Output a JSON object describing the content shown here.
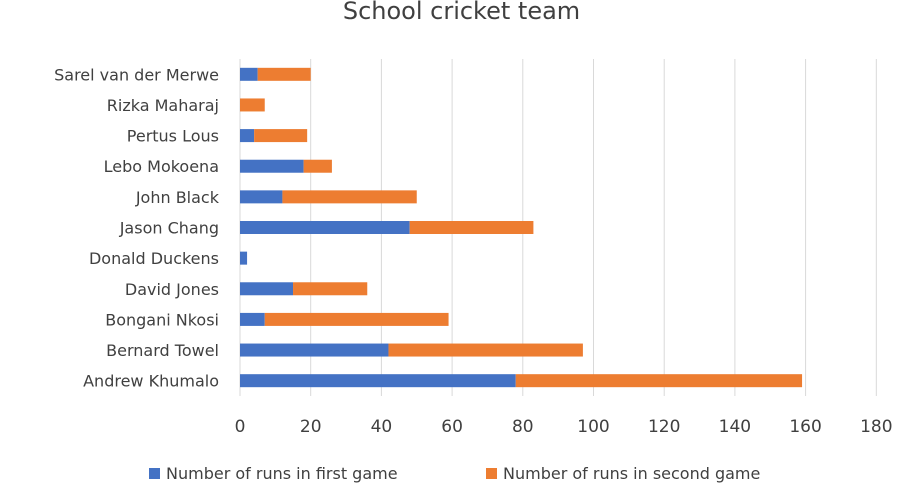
{
  "chart_data": {
    "type": "bar",
    "orientation": "horizontal",
    "stacked": true,
    "title": "School cricket team",
    "categories": [
      "Sarel van der Merwe",
      "Rizka Maharaj",
      "Pertus Lous",
      "Lebo Mokoena",
      "John Black",
      "Jason Chang",
      "Donald Duckens",
      "David Jones",
      "Bongani Nkosi",
      "Bernard Towel",
      "Andrew Khumalo"
    ],
    "series": [
      {
        "name": "Number of runs in first game",
        "color": "#4472C4",
        "values": [
          5,
          0,
          4,
          18,
          12,
          48,
          2,
          15,
          7,
          42,
          78
        ]
      },
      {
        "name": "Number of runs in second game",
        "color": "#ED7D31",
        "values": [
          15,
          7,
          15,
          8,
          38,
          35,
          0,
          21,
          52,
          55,
          81
        ]
      }
    ],
    "xlim": [
      0,
      180
    ],
    "xticks": [
      "0",
      "20",
      "40",
      "60",
      "80",
      "100",
      "120",
      "140",
      "160",
      "180"
    ],
    "grid": true,
    "legend": "bottom",
    "xlabel": "",
    "ylabel": ""
  }
}
